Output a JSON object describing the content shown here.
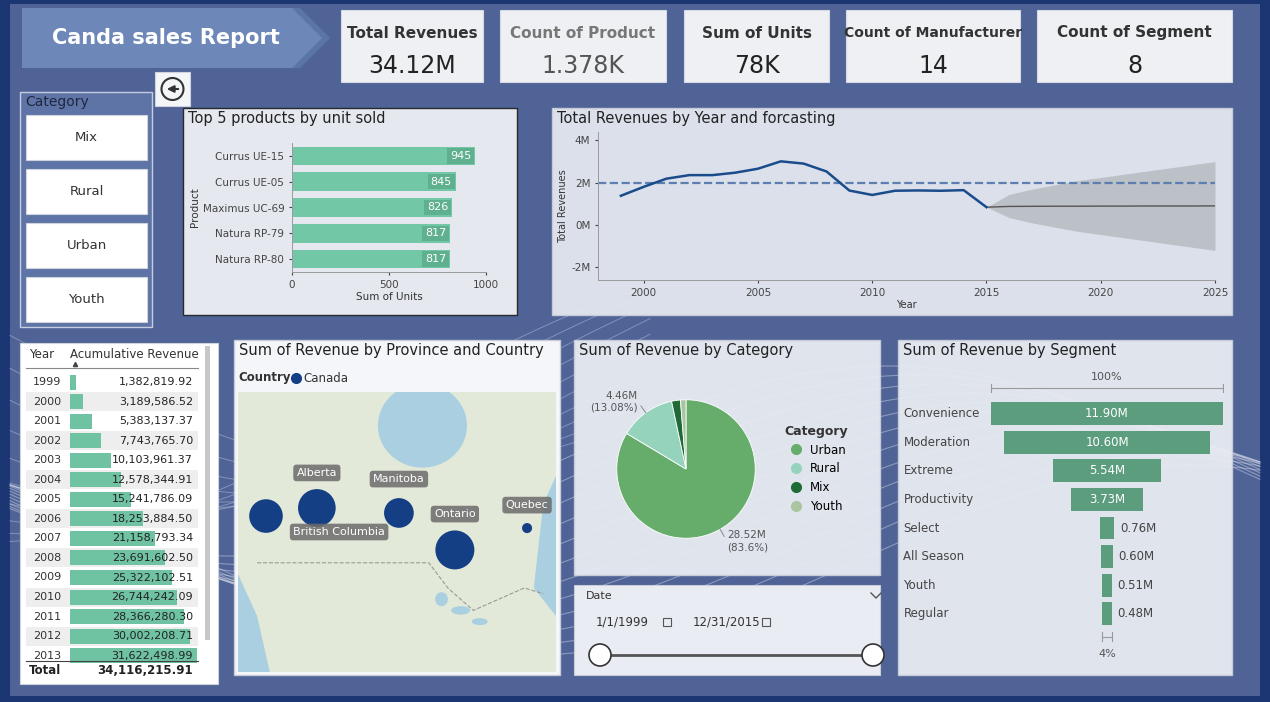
{
  "title": "Canda sales Report",
  "cards": [
    {
      "label": "Total Revenues",
      "value": "34.12M"
    },
    {
      "label": "Count of Product",
      "value": "1.378K"
    },
    {
      "label": "Sum of Units",
      "value": "78K"
    },
    {
      "label": "Count of Manufacturer",
      "value": "14"
    },
    {
      "label": "Count of Segment",
      "value": "8"
    }
  ],
  "category_slicer": {
    "title": "Category",
    "items": [
      "Mix",
      "Rural",
      "Urban",
      "Youth"
    ]
  },
  "table": {
    "columns": [
      "Year",
      "Acumulative Revenue"
    ],
    "rows": [
      [
        "1999",
        "1,382,819.92"
      ],
      [
        "2000",
        "3,189,586.52"
      ],
      [
        "2001",
        "5,383,137.37"
      ],
      [
        "2002",
        "7,743,765.70"
      ],
      [
        "2003",
        "10,103,961.37"
      ],
      [
        "2004",
        "12,578,344.91"
      ],
      [
        "2005",
        "15,241,786.09"
      ],
      [
        "2006",
        "18,253,884.50"
      ],
      [
        "2007",
        "21,158,793.34"
      ],
      [
        "2008",
        "23,691,602.50"
      ],
      [
        "2009",
        "25,322,102.51"
      ],
      [
        "2010",
        "26,744,242.09"
      ],
      [
        "2011",
        "28,366,280.30"
      ],
      [
        "2012",
        "30,002,208.71"
      ],
      [
        "2013",
        "31,622,498.99"
      ]
    ],
    "total": [
      "Total",
      "34,116,215.91"
    ]
  },
  "date_slicer": {
    "title": "Date",
    "start": "1/1/1999",
    "end": "12/31/2015"
  },
  "chart_data": [
    {
      "type": "bar",
      "title": "Top 5 products by unit sold",
      "orientation": "horizontal",
      "categories": [
        "Currus UE-15",
        "Currus UE-05",
        "Maximus UC-69",
        "Natura RP-79",
        "Natura RP-80"
      ],
      "values": [
        945,
        845,
        826,
        817,
        817
      ],
      "xlabel": "Sum of Units",
      "ylabel": "Product",
      "xlim": [
        0,
        1000
      ],
      "xticks": [
        0,
        500,
        1000
      ],
      "color": "#72c7a6",
      "data_labels": true
    },
    {
      "type": "line",
      "title": "Total Revenues by Year and forcasting",
      "xlabel": "Year",
      "ylabel": "Total Revenues",
      "x": [
        1999,
        2000,
        2001,
        2002,
        2003,
        2004,
        2005,
        2006,
        2007,
        2008,
        2009,
        2010,
        2011,
        2012,
        2013,
        2014,
        2015
      ],
      "values": [
        1382820,
        1806767,
        2193551,
        2360628,
        2360196,
        2474384,
        2663441,
        3012098,
        2904909,
        2532809,
        1630500,
        1422140,
        1622038,
        1635928,
        1620290,
        1650000,
        843717
      ],
      "color": "#1a4c8b",
      "xlim": [
        1998,
        2025
      ],
      "xticks": [
        2000,
        2005,
        2010,
        2015,
        2020,
        2025
      ],
      "ylim": [
        -2600000,
        4400000
      ],
      "yticks": [
        {
          "value": -2000000,
          "label": "-2M"
        },
        {
          "value": 0,
          "label": "0M"
        },
        {
          "value": 2000000,
          "label": "2M"
        },
        {
          "value": 4000000,
          "label": "4M"
        }
      ],
      "reference_line": 2000000,
      "forecast": {
        "x": [
          2015,
          2016,
          2017,
          2018,
          2019,
          2020,
          2021,
          2022,
          2023,
          2024,
          2025
        ],
        "values": [
          843717,
          880000,
          885000,
          890000,
          890000,
          895000,
          895000,
          900000,
          900000,
          900000,
          905000
        ],
        "upper": [
          843717,
          1450000,
          1700000,
          1900000,
          2100000,
          2250000,
          2400000,
          2550000,
          2700000,
          2850000,
          3000000
        ],
        "lower": [
          843717,
          350000,
          100000,
          -100000,
          -300000,
          -450000,
          -600000,
          -750000,
          -900000,
          -1050000,
          -1200000
        ],
        "color": "#555555"
      }
    },
    {
      "type": "map",
      "title": "Sum of Revenue by Province and Country",
      "legend_title": "Country",
      "categories": [
        "Alberta",
        "British Columbia",
        "Manitoba",
        "Ontario",
        "Quebec"
      ],
      "series": [
        {
          "name": "Canada",
          "color": "#143f85",
          "values": [
            9.8,
            7.8,
            6.1,
            10.5,
            0.7
          ]
        }
      ]
    },
    {
      "type": "pie",
      "title": "Sum of Revenue by Category",
      "legend_title": "Category",
      "legend": "right",
      "categories": [
        "Urban",
        "Rural",
        "Mix",
        "Youth"
      ],
      "values": [
        28.52,
        4.46,
        0.7,
        0.44
      ],
      "value_labels": [
        "28.52M\n(83.6%)",
        "4.46M\n(13.08%)",
        null,
        null
      ],
      "data_labels": true,
      "colors": [
        "#66ad6c",
        "#95d3bd",
        "#1f6b36",
        "#a9c5a2"
      ]
    },
    {
      "type": "funnel",
      "title": "Sum of Revenue by Segment",
      "categories": [
        "Convenience",
        "Moderation",
        "Extreme",
        "Productivity",
        "Select",
        "All Season",
        "Youth",
        "Regular"
      ],
      "values": [
        11.9,
        10.6,
        5.54,
        3.73,
        0.76,
        0.6,
        0.51,
        0.48
      ],
      "value_labels": [
        "11.90M",
        "10.60M",
        "5.54M",
        "3.73M",
        "0.76M",
        "0.60M",
        "0.51M",
        "0.48M"
      ],
      "data_labels": true,
      "color": "#5c9d7e",
      "top_label": "100%",
      "bottom_label": "4%",
      "tick_labels": false
    }
  ]
}
